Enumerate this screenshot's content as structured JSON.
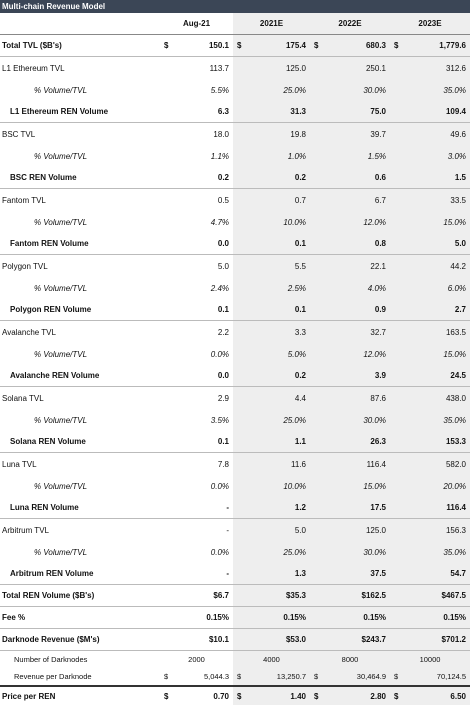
{
  "title": "Multi-chain Revenue Model",
  "columns": [
    "Aug-21",
    "2021E",
    "2022E",
    "2023E"
  ],
  "rows": [
    {
      "label": "Total TVL ($B's)",
      "currency": "$",
      "values": [
        "150.1",
        "175.4",
        "680.3",
        "1,779.6"
      ]
    },
    {
      "label": "L1 Ethereum TVL",
      "values": [
        "113.7",
        "125.0",
        "250.1",
        "312.6"
      ]
    },
    {
      "label": "% Volume/TVL",
      "values": [
        "5.5%",
        "25.0%",
        "30.0%",
        "35.0%"
      ]
    },
    {
      "label": "L1 Ethereum REN Volume",
      "values": [
        "6.3",
        "31.3",
        "75.0",
        "109.4"
      ]
    },
    {
      "label": "BSC TVL",
      "values": [
        "18.0",
        "19.8",
        "39.7",
        "49.6"
      ]
    },
    {
      "label": "% Volume/TVL",
      "values": [
        "1.1%",
        "1.0%",
        "1.5%",
        "3.0%"
      ]
    },
    {
      "label": "BSC REN Volume",
      "values": [
        "0.2",
        "0.2",
        "0.6",
        "1.5"
      ]
    },
    {
      "label": "Fantom TVL",
      "values": [
        "0.5",
        "0.7",
        "6.7",
        "33.5"
      ]
    },
    {
      "label": "% Volume/TVL",
      "values": [
        "4.7%",
        "10.0%",
        "12.0%",
        "15.0%"
      ]
    },
    {
      "label": "Fantom REN Volume",
      "values": [
        "0.0",
        "0.1",
        "0.8",
        "5.0"
      ]
    },
    {
      "label": "Polygon TVL",
      "values": [
        "5.0",
        "5.5",
        "22.1",
        "44.2"
      ]
    },
    {
      "label": "% Volume/TVL",
      "values": [
        "2.4%",
        "2.5%",
        "4.0%",
        "6.0%"
      ]
    },
    {
      "label": "Polygon REN Volume",
      "values": [
        "0.1",
        "0.1",
        "0.9",
        "2.7"
      ]
    },
    {
      "label": "Avalanche TVL",
      "values": [
        "2.2",
        "3.3",
        "32.7",
        "163.5"
      ]
    },
    {
      "label": "% Volume/TVL",
      "values": [
        "0.0%",
        "5.0%",
        "12.0%",
        "15.0%"
      ]
    },
    {
      "label": "Avalanche REN Volume",
      "values": [
        "0.0",
        "0.2",
        "3.9",
        "24.5"
      ]
    },
    {
      "label": "Solana TVL",
      "values": [
        "2.9",
        "4.4",
        "87.6",
        "438.0"
      ]
    },
    {
      "label": "% Volume/TVL",
      "values": [
        "3.5%",
        "25.0%",
        "30.0%",
        "35.0%"
      ]
    },
    {
      "label": "Solana REN Volume",
      "values": [
        "0.1",
        "1.1",
        "26.3",
        "153.3"
      ]
    },
    {
      "label": "Luna TVL",
      "values": [
        "7.8",
        "11.6",
        "116.4",
        "582.0"
      ]
    },
    {
      "label": "% Volume/TVL",
      "values": [
        "0.0%",
        "10.0%",
        "15.0%",
        "20.0%"
      ]
    },
    {
      "label": "Luna REN Volume",
      "values": [
        "-",
        "1.2",
        "17.5",
        "116.4"
      ]
    },
    {
      "label": "Arbitrum TVL",
      "values": [
        "-",
        "5.0",
        "125.0",
        "156.3"
      ]
    },
    {
      "label": "% Volume/TVL",
      "values": [
        "0.0%",
        "25.0%",
        "30.0%",
        "35.0%"
      ]
    },
    {
      "label": "Arbitrum REN Volume",
      "values": [
        "-",
        "1.3",
        "37.5",
        "54.7"
      ]
    },
    {
      "label": "Total REN Volume ($B's)",
      "values": [
        "$6.7",
        "$35.3",
        "$162.5",
        "$467.5"
      ]
    },
    {
      "label": "Fee %",
      "values": [
        "0.15%",
        "0.15%",
        "0.15%",
        "0.15%"
      ]
    },
    {
      "label": "Darknode Revenue ($M's)",
      "values": [
        "$10.1",
        "$53.0",
        "$243.7",
        "$701.2"
      ]
    },
    {
      "label": "Number of Darknodes",
      "values": [
        "2000",
        "4000",
        "8000",
        "10000"
      ]
    },
    {
      "label": "Revenue per Darknode",
      "currency": "$",
      "values": [
        "5,044.3",
        "13,250.7",
        "30,464.9",
        "70,124.5"
      ]
    },
    {
      "label": "Price per REN",
      "currency": "$",
      "values": [
        "0.70",
        "1.40",
        "2.80",
        "6.50"
      ]
    }
  ]
}
